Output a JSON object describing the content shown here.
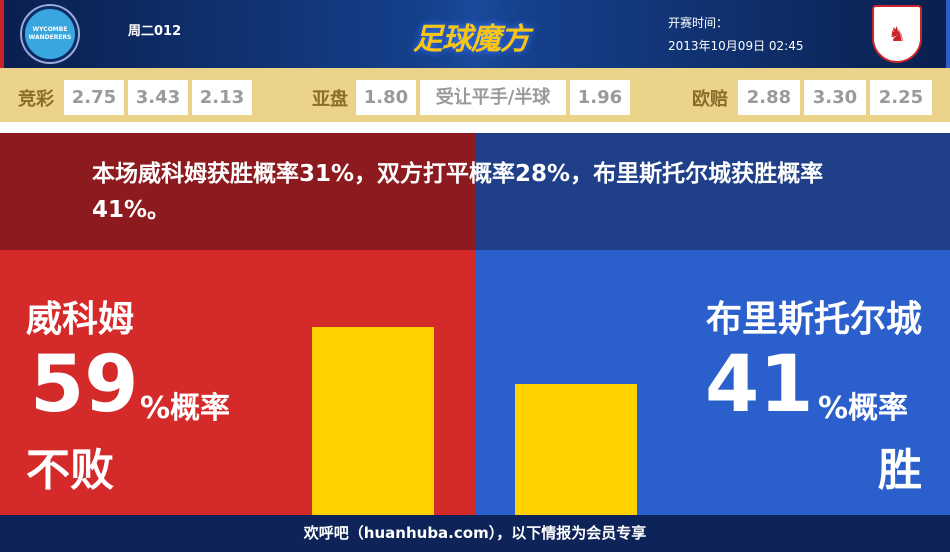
{
  "header": {
    "home_logo_text": "WYCOMBE WANDERERS",
    "match_no": "周二012",
    "brand": "足球魔方",
    "time_label": "开赛时间：",
    "time_value": "2013年10月09日 02:45",
    "away_logo": "bristol-city-crest"
  },
  "odds": {
    "jingcai": {
      "label": "竞彩",
      "values": [
        "2.75",
        "3.43",
        "2.13"
      ]
    },
    "asian": {
      "label": "亚盘",
      "values": [
        "1.80",
        "受让平手/半球",
        "1.96"
      ]
    },
    "euro": {
      "label": "欧赔",
      "values": [
        "2.88",
        "3.30",
        "2.25"
      ]
    }
  },
  "summary": "本场威科姆获胜概率31%，双方打平概率28%，布里斯托尔城获胜概率41%。",
  "home": {
    "name": "威科姆",
    "percent": "59",
    "percent_unit": "%概率",
    "result": "不败",
    "bar_value": 59
  },
  "away": {
    "name": "布里斯托尔城",
    "percent": "41",
    "percent_unit": "%概率",
    "result": "胜",
    "bar_value": 41
  },
  "footer": "欢呼吧（huanhuba.com），以下情报为会员专享",
  "colors": {
    "home": "#d42a2a",
    "away": "#2a5fcc",
    "bar": "#ffd200"
  }
}
